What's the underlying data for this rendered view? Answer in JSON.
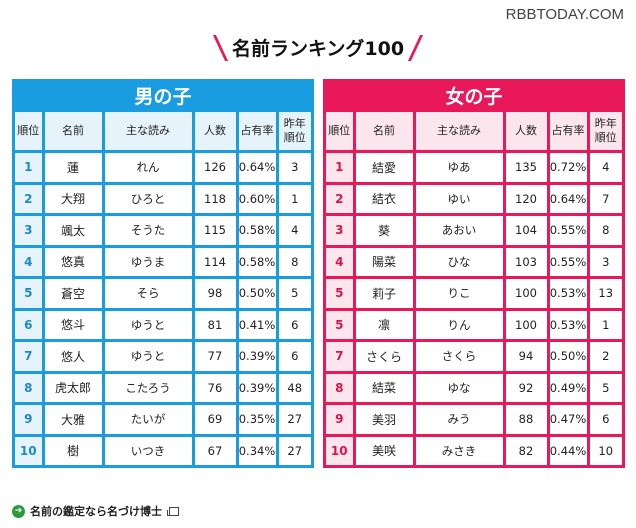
{
  "watermark": "RBBTODAY.COM",
  "title": "名前ランキング100",
  "colors": {
    "boys": "#1a9de0",
    "girls": "#e8185a"
  },
  "columns": [
    "順位",
    "名前",
    "主な読み",
    "人数",
    "占有率",
    "昨年順位"
  ],
  "columns_display": {
    "rank": "順位",
    "name": "名前",
    "reading": "主な読み",
    "count": "人数",
    "share": "占有率",
    "prev_line1": "昨年",
    "prev_line2": "順位"
  },
  "boys": {
    "heading": "男の子",
    "rows": [
      {
        "rank": "1",
        "name": "蓮",
        "reading": "れん",
        "count": "126",
        "share": "0.64%",
        "prev": "3"
      },
      {
        "rank": "2",
        "name": "大翔",
        "reading": "ひろと",
        "count": "118",
        "share": "0.60%",
        "prev": "1"
      },
      {
        "rank": "3",
        "name": "颯太",
        "reading": "そうた",
        "count": "115",
        "share": "0.58%",
        "prev": "4"
      },
      {
        "rank": "4",
        "name": "悠真",
        "reading": "ゆうま",
        "count": "114",
        "share": "0.58%",
        "prev": "8"
      },
      {
        "rank": "5",
        "name": "蒼空",
        "reading": "そら",
        "count": "98",
        "share": "0.50%",
        "prev": "5"
      },
      {
        "rank": "6",
        "name": "悠斗",
        "reading": "ゆうと",
        "count": "81",
        "share": "0.41%",
        "prev": "6"
      },
      {
        "rank": "7",
        "name": "悠人",
        "reading": "ゆうと",
        "count": "77",
        "share": "0.39%",
        "prev": "6"
      },
      {
        "rank": "8",
        "name": "虎太郎",
        "reading": "こたろう",
        "count": "76",
        "share": "0.39%",
        "prev": "48"
      },
      {
        "rank": "9",
        "name": "大雅",
        "reading": "たいが",
        "count": "69",
        "share": "0.35%",
        "prev": "27"
      },
      {
        "rank": "10",
        "name": "樹",
        "reading": "いつき",
        "count": "67",
        "share": "0.34%",
        "prev": "27"
      }
    ]
  },
  "girls": {
    "heading": "女の子",
    "rows": [
      {
        "rank": "1",
        "name": "結愛",
        "reading": "ゆあ",
        "count": "135",
        "share": "0.72%",
        "prev": "4"
      },
      {
        "rank": "2",
        "name": "結衣",
        "reading": "ゆい",
        "count": "120",
        "share": "0.64%",
        "prev": "7"
      },
      {
        "rank": "3",
        "name": "葵",
        "reading": "あおい",
        "count": "104",
        "share": "0.55%",
        "prev": "8"
      },
      {
        "rank": "4",
        "name": "陽菜",
        "reading": "ひな",
        "count": "103",
        "share": "0.55%",
        "prev": "3"
      },
      {
        "rank": "5",
        "name": "莉子",
        "reading": "りこ",
        "count": "100",
        "share": "0.53%",
        "prev": "13"
      },
      {
        "rank": "5",
        "name": "凛",
        "reading": "りん",
        "count": "100",
        "share": "0.53%",
        "prev": "1"
      },
      {
        "rank": "7",
        "name": "さくら",
        "reading": "さくら",
        "count": "94",
        "share": "0.50%",
        "prev": "2"
      },
      {
        "rank": "8",
        "name": "結菜",
        "reading": "ゆな",
        "count": "92",
        "share": "0.49%",
        "prev": "5"
      },
      {
        "rank": "9",
        "name": "美羽",
        "reading": "みう",
        "count": "88",
        "share": "0.47%",
        "prev": "6"
      },
      {
        "rank": "10",
        "name": "美咲",
        "reading": "みさき",
        "count": "82",
        "share": "0.44%",
        "prev": "10"
      }
    ]
  },
  "footer": {
    "link_text": "名前の鑑定なら名づけ博士",
    "arrow_icon": "➔"
  }
}
